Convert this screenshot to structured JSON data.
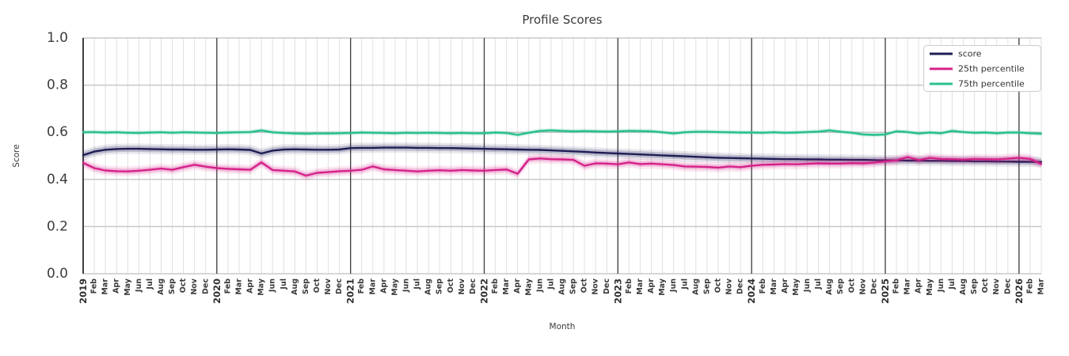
{
  "chart_data": {
    "type": "line",
    "title": "Profile Scores",
    "xlabel": "Month",
    "ylabel": "Score",
    "ylim": [
      0.0,
      1.0
    ],
    "yticks": [
      0.0,
      0.2,
      0.4,
      0.6,
      0.8,
      1.0
    ],
    "grid": true,
    "legend_position": "upper right",
    "x_labels": [
      "2019",
      "Feb",
      "Mar",
      "Apr",
      "May",
      "Jun",
      "Jul",
      "Aug",
      "Sep",
      "Oct",
      "Nov",
      "Dec",
      "2020",
      "Feb",
      "Mar",
      "Apr",
      "May",
      "Jun",
      "Jul",
      "Aug",
      "Sep",
      "Oct",
      "Nov",
      "Dec",
      "2021",
      "Feb",
      "Mar",
      "Apr",
      "May",
      "Jun",
      "Jul",
      "Aug",
      "Sep",
      "Oct",
      "Nov",
      "Dec",
      "2022",
      "Feb",
      "Mar",
      "Apr",
      "May",
      "Jun",
      "Jul",
      "Aug",
      "Sep",
      "Oct",
      "Nov",
      "Dec",
      "2023",
      "Feb",
      "Mar",
      "Apr",
      "May",
      "Jun",
      "Jul",
      "Aug",
      "Sep",
      "Oct",
      "Nov",
      "Dec",
      "2024",
      "Feb",
      "Mar",
      "Apr",
      "May",
      "Jun",
      "Jul",
      "Aug",
      "Sep",
      "Oct",
      "Nov",
      "Dec",
      "2025",
      "Feb",
      "Mar",
      "Apr",
      "May",
      "Jun",
      "Jul",
      "Aug",
      "Sep",
      "Oct",
      "Nov",
      "Dec",
      "2026",
      "Feb",
      "Mar"
    ],
    "series": [
      {
        "name": "score",
        "color": "#1e1d55",
        "band_inner": 0.013,
        "band_outer": 0.022,
        "values": [
          0.503,
          0.518,
          0.526,
          0.529,
          0.53,
          0.53,
          0.529,
          0.528,
          0.527,
          0.527,
          0.526,
          0.526,
          0.527,
          0.528,
          0.527,
          0.525,
          0.51,
          0.522,
          0.527,
          0.528,
          0.527,
          0.526,
          0.526,
          0.527,
          0.533,
          0.534,
          0.534,
          0.535,
          0.535,
          0.535,
          0.534,
          0.534,
          0.533,
          0.533,
          0.532,
          0.531,
          0.53,
          0.529,
          0.528,
          0.527,
          0.526,
          0.525,
          0.523,
          0.521,
          0.519,
          0.517,
          0.514,
          0.512,
          0.51,
          0.508,
          0.506,
          0.504,
          0.502,
          0.5,
          0.498,
          0.496,
          0.494,
          0.492,
          0.491,
          0.49,
          0.489,
          0.488,
          0.487,
          0.486,
          0.486,
          0.485,
          0.485,
          0.484,
          0.484,
          0.483,
          0.483,
          0.482,
          0.481,
          0.481,
          0.48,
          0.48,
          0.479,
          0.479,
          0.478,
          0.478,
          0.477,
          0.477,
          0.476,
          0.476,
          0.475,
          0.475,
          0.474
        ]
      },
      {
        "name": "25th percentile",
        "color": "#d5218a",
        "band_inner": 0.012,
        "band_outer": 0.021,
        "values": [
          0.47,
          0.448,
          0.438,
          0.435,
          0.434,
          0.437,
          0.441,
          0.446,
          0.441,
          0.452,
          0.462,
          0.454,
          0.448,
          0.445,
          0.443,
          0.441,
          0.472,
          0.44,
          0.437,
          0.434,
          0.416,
          0.428,
          0.431,
          0.435,
          0.437,
          0.441,
          0.455,
          0.443,
          0.44,
          0.437,
          0.434,
          0.437,
          0.439,
          0.437,
          0.44,
          0.438,
          0.437,
          0.44,
          0.442,
          0.424,
          0.485,
          0.489,
          0.486,
          0.485,
          0.483,
          0.458,
          0.468,
          0.467,
          0.464,
          0.472,
          0.465,
          0.467,
          0.464,
          0.461,
          0.455,
          0.454,
          0.453,
          0.45,
          0.455,
          0.452,
          0.458,
          0.462,
          0.463,
          0.465,
          0.464,
          0.466,
          0.468,
          0.467,
          0.467,
          0.469,
          0.468,
          0.471,
          0.477,
          0.481,
          0.495,
          0.482,
          0.492,
          0.487,
          0.486,
          0.484,
          0.487,
          0.486,
          0.485,
          0.488,
          0.492,
          0.487,
          0.465
        ]
      },
      {
        "name": "75th percentile",
        "color": "#29bf8f",
        "band_inner": 0.006,
        "band_outer": 0.011,
        "values": [
          0.6,
          0.601,
          0.599,
          0.6,
          0.598,
          0.597,
          0.599,
          0.6,
          0.598,
          0.6,
          0.599,
          0.598,
          0.597,
          0.599,
          0.6,
          0.601,
          0.608,
          0.6,
          0.597,
          0.595,
          0.594,
          0.595,
          0.595,
          0.596,
          0.597,
          0.599,
          0.598,
          0.597,
          0.596,
          0.598,
          0.597,
          0.598,
          0.597,
          0.596,
          0.597,
          0.596,
          0.596,
          0.599,
          0.597,
          0.589,
          0.598,
          0.606,
          0.608,
          0.606,
          0.604,
          0.605,
          0.604,
          0.603,
          0.604,
          0.606,
          0.605,
          0.604,
          0.6,
          0.595,
          0.6,
          0.602,
          0.602,
          0.601,
          0.6,
          0.599,
          0.599,
          0.598,
          0.6,
          0.598,
          0.599,
          0.601,
          0.603,
          0.608,
          0.602,
          0.598,
          0.591,
          0.589,
          0.591,
          0.604,
          0.601,
          0.595,
          0.599,
          0.596,
          0.606,
          0.601,
          0.598,
          0.599,
          0.596,
          0.599,
          0.599,
          0.596,
          0.594
        ]
      }
    ]
  }
}
